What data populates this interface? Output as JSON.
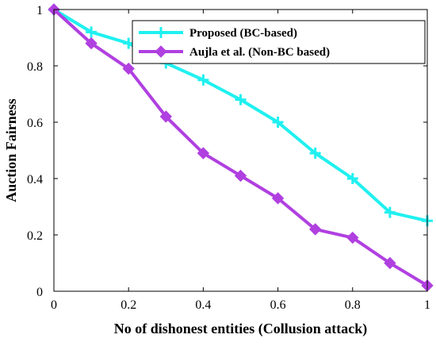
{
  "chart_data": {
    "type": "line",
    "title": "",
    "xlabel": "No of dishonest entities (Collusion attack)",
    "ylabel": "Auction Fairness",
    "xlim": [
      0,
      1
    ],
    "ylim": [
      0,
      1
    ],
    "x": [
      0,
      0.1,
      0.2,
      0.3,
      0.4,
      0.5,
      0.6,
      0.7,
      0.8,
      0.9,
      1.0
    ],
    "xticks": [
      "0",
      "0.2",
      "0.4",
      "0.6",
      "0.8",
      "1"
    ],
    "yticks": [
      "0",
      "0.2",
      "0.4",
      "0.6",
      "0.8",
      "1"
    ],
    "grid": false,
    "legend_position": "top-right",
    "series": [
      {
        "name": "Proposed (BC-based)",
        "color": "#20f0f0",
        "marker": "plus",
        "values": [
          1.0,
          0.92,
          0.88,
          0.81,
          0.75,
          0.68,
          0.6,
          0.49,
          0.4,
          0.28,
          0.25
        ]
      },
      {
        "name": "Aujla et al. (Non-BC based)",
        "color": "#b040e0",
        "marker": "diamond",
        "values": [
          1.0,
          0.88,
          0.79,
          0.62,
          0.49,
          0.41,
          0.33,
          0.22,
          0.19,
          0.1,
          0.02
        ]
      }
    ]
  }
}
